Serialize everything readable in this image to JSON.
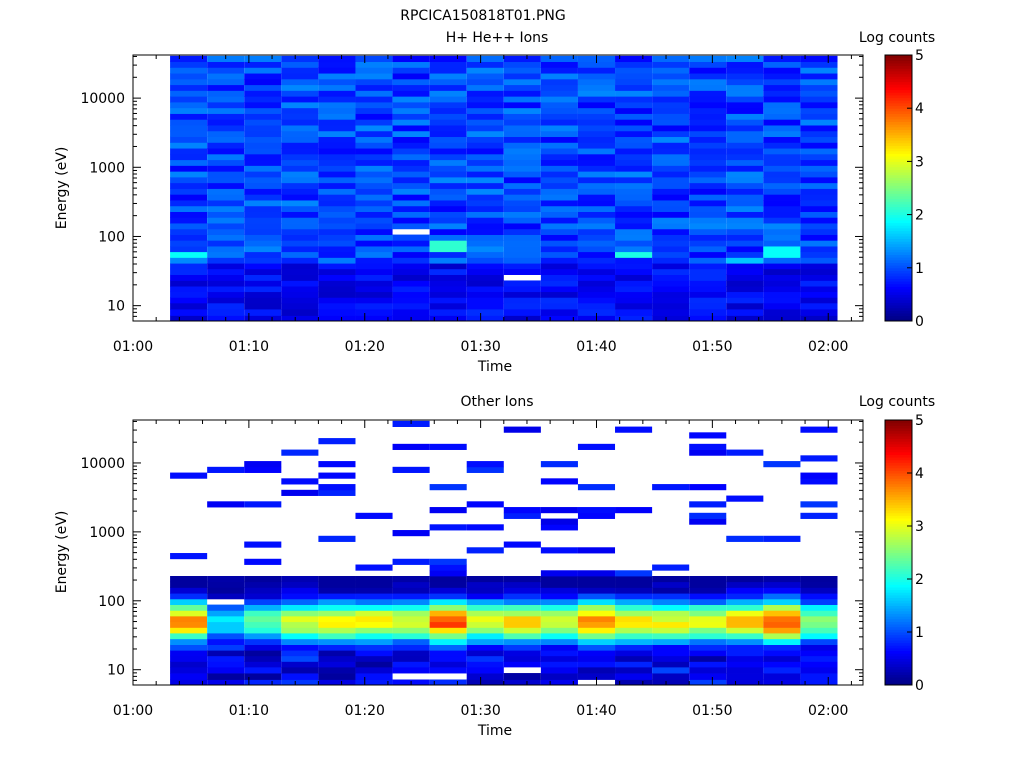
{
  "page": {
    "title": "RPCICA150818T01.PNG"
  },
  "colors": {
    "colormap": "jet",
    "background": "#ffffff",
    "empty_bin": "#ffffff"
  },
  "chart_data": [
    {
      "type": "heatmap",
      "title": "H+ He++ Ions",
      "xlabel": "Time",
      "ylabel": "Energy (eV)",
      "colorbar_label": "Log counts",
      "colorbar_ticks": [
        "0",
        "1",
        "2",
        "3",
        "4",
        "5"
      ],
      "colorbar_range": [
        0,
        5
      ],
      "y_scale": "log",
      "x_ticks": [
        "01:00",
        "01:10",
        "01:20",
        "01:30",
        "01:40",
        "01:50",
        "02:00"
      ],
      "y_ticks": [
        "10",
        "100",
        "1000",
        "10000"
      ],
      "x_range_min": [
        0,
        63
      ],
      "y_range_eV": [
        6,
        42000
      ],
      "time_bins_start_min": [
        3.2,
        6.4,
        9.6,
        12.8,
        16.0,
        19.2,
        22.4,
        25.6,
        28.8,
        32.0,
        35.2,
        38.4,
        41.6,
        44.8,
        48.0,
        51.2,
        54.4,
        57.6
      ],
      "time_bin_width_min": 3.2,
      "energy_bins_eV": [
        6.5,
        8,
        10,
        12,
        14.5,
        17.5,
        21,
        25.5,
        31,
        37.5,
        45,
        55,
        66,
        80,
        97,
        117,
        142,
        172,
        208,
        252,
        305,
        370,
        448,
        543,
        658,
        797,
        966,
        1170,
        1418,
        1718,
        2082,
        2522,
        3056,
        3703,
        4487,
        5437,
        6588,
        7983,
        9673,
        11721,
        14203,
        17210,
        20854,
        25270,
        30620,
        37100
      ],
      "pattern": {
        "base_log_counts": 0.95,
        "low_energy_max_eV": 40,
        "low_energy_log_counts": 0.35,
        "bright_bins": [
          {
            "time_index": 0,
            "energy_eV": 55,
            "value": 1.9
          },
          {
            "time_index": 7,
            "energy_eV": 66,
            "value": 2.1
          },
          {
            "time_index": 7,
            "energy_eV": 80,
            "value": 2.1
          },
          {
            "time_index": 12,
            "energy_eV": 55,
            "value": 2.0
          },
          {
            "time_index": 16,
            "energy_eV": 55,
            "value": 1.9
          },
          {
            "time_index": 16,
            "energy_eV": 66,
            "value": 1.9
          },
          {
            "time_index": 15,
            "energy_eV": 45,
            "value": 1.6
          }
        ],
        "empty_bins": [
          {
            "time_index": 6,
            "energy_eV": 117
          },
          {
            "time_index": 9,
            "energy_eV": 25.5
          }
        ]
      }
    },
    {
      "type": "heatmap",
      "title": "Other Ions",
      "xlabel": "Time",
      "ylabel": "Energy (eV)",
      "colorbar_label": "Log counts",
      "colorbar_ticks": [
        "0",
        "1",
        "2",
        "3",
        "4",
        "5"
      ],
      "colorbar_range": [
        0,
        5
      ],
      "y_scale": "log",
      "x_ticks": [
        "01:00",
        "01:10",
        "01:20",
        "01:30",
        "01:40",
        "01:50",
        "02:00"
      ],
      "y_ticks": [
        "10",
        "100",
        "1000",
        "10000"
      ],
      "x_range_min": [
        0,
        63
      ],
      "y_range_eV": [
        6,
        42000
      ],
      "time_bins_start_min": [
        3.2,
        6.4,
        9.6,
        12.8,
        16.0,
        19.2,
        22.4,
        25.6,
        28.8,
        32.0,
        35.2,
        38.4,
        41.6,
        44.8,
        48.0,
        51.2,
        54.4,
        57.6
      ],
      "time_bin_width_min": 3.2,
      "energy_bins_eV": [
        6.5,
        8,
        10,
        12,
        14.5,
        17.5,
        21,
        25.5,
        31,
        37.5,
        45,
        55,
        66,
        80,
        97,
        117,
        142,
        172,
        208,
        252,
        305,
        370,
        448,
        543,
        658,
        797,
        966,
        1170,
        1418,
        1718,
        2082,
        2522,
        3056,
        3703,
        4487,
        5437,
        6588,
        7983,
        9673,
        11721,
        14203,
        17210,
        20854,
        25270,
        30620,
        37100
      ],
      "pattern": {
        "peak_energy_eV": 50,
        "peak_log_counts": [
          3.6,
          1.8,
          2.4,
          3.0,
          3.1,
          3.2,
          3.0,
          4.0,
          3.1,
          3.3,
          2.9,
          3.8,
          3.2,
          3.1,
          3.0,
          3.5,
          4.0,
          2.6
        ],
        "continuum_max_eV": 240,
        "sparse_high_energy_log_counts": 0.5,
        "empty_bins": [
          {
            "time_index": 1,
            "energy_eV": 97
          },
          {
            "time_index": 7,
            "energy_eV": 8
          },
          {
            "time_index": 9,
            "energy_eV": 10
          },
          {
            "time_index": 11,
            "energy_eV": 6.5
          },
          {
            "time_index": 6,
            "energy_eV": 8
          }
        ]
      }
    }
  ]
}
